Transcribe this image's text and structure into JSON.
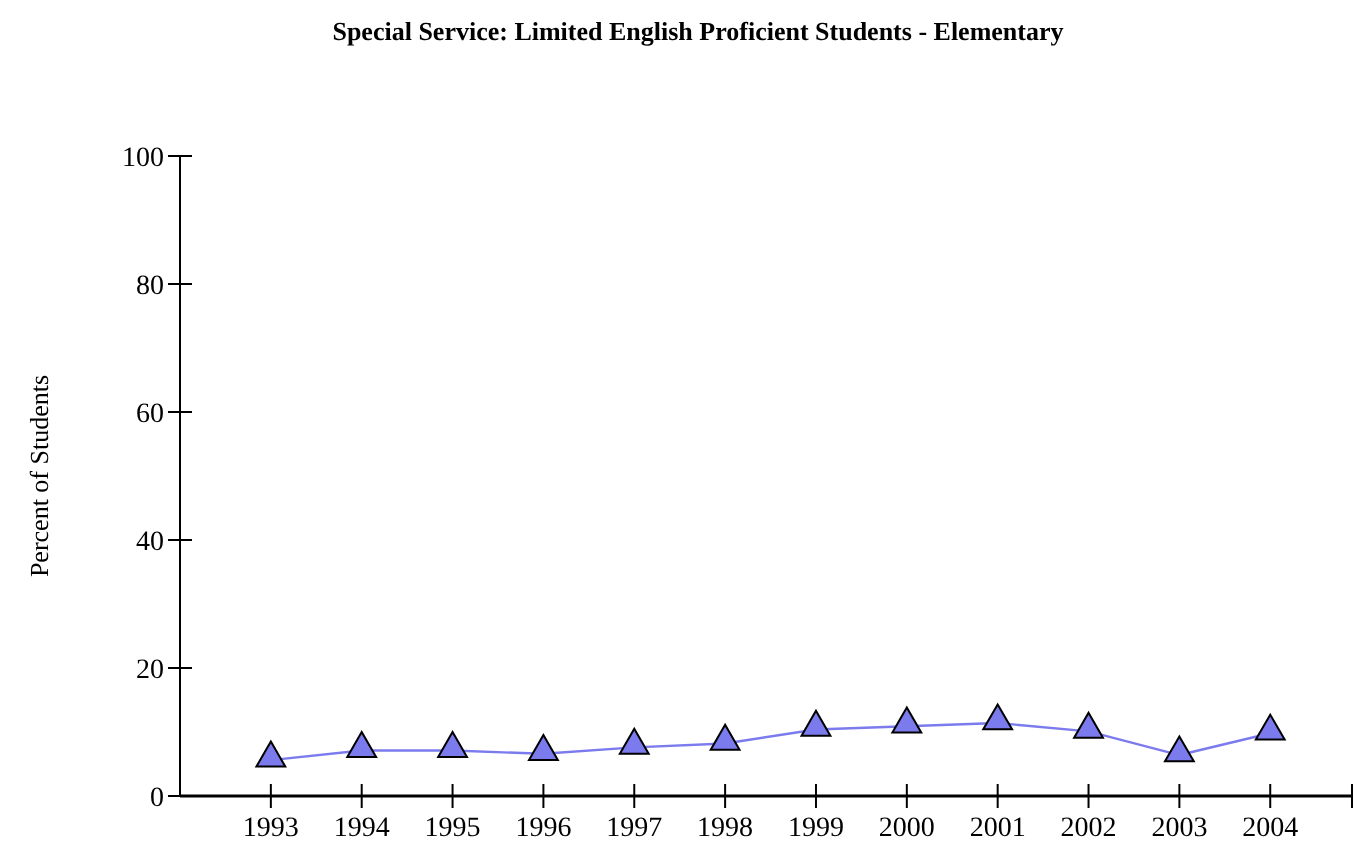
{
  "chart_data": {
    "type": "line",
    "title": "Special Service: Limited English Proficient Students - Elementary",
    "ylabel": "Percent of Students",
    "categories": [
      "1993",
      "1994",
      "1995",
      "1996",
      "1997",
      "1998",
      "1999",
      "2000",
      "2001",
      "2002",
      "2003",
      "2004"
    ],
    "series": [
      {
        "color": "#7b7bee",
        "values": [
          5.6,
          7.1,
          7.1,
          6.6,
          7.6,
          8.2,
          10.4,
          10.9,
          11.4,
          10.1,
          6.4,
          9.8
        ]
      }
    ],
    "ylim": [
      0,
      100
    ],
    "yticks": [
      0,
      20,
      40,
      60,
      80,
      100
    ],
    "marker": "triangle"
  }
}
